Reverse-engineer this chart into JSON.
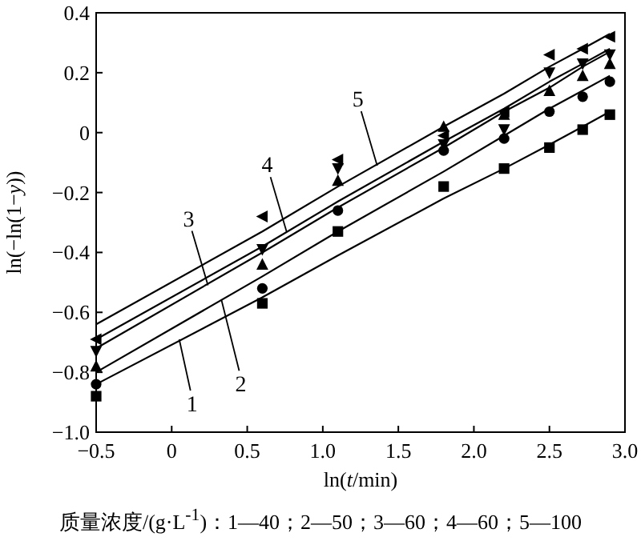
{
  "chart_data": {
    "type": "scatter",
    "xlabel": "ln(*t*/min)",
    "ylabel": "ln(−ln(1−*y*))",
    "xlim": [
      -0.5,
      3.0
    ],
    "xticks": [
      {
        "value": -0.5,
        "label": "−0.5"
      },
      0,
      0.5,
      {
        "value": 1.0,
        "label": "1.0"
      },
      1.5,
      {
        "value": 2.0,
        "label": "2.0"
      },
      2.5,
      {
        "value": 3.0,
        "label": "3.0"
      }
    ],
    "ylim": [
      -1.0,
      0.4
    ],
    "yticks": [
      {
        "value": -1.0,
        "label": "−1.0"
      },
      {
        "value": -0.8,
        "label": "−0.8"
      },
      {
        "value": -0.6,
        "label": "−0.6"
      },
      {
        "value": -0.4,
        "label": "−0.4"
      },
      {
        "value": -0.2,
        "label": "−0.2"
      },
      0,
      0.2,
      0.4
    ],
    "x": [
      -0.5,
      0.6,
      1.1,
      1.8,
      2.2,
      2.5,
      2.72,
      2.9
    ],
    "series": [
      {
        "color": "#000000",
        "marker": "square",
        "values": [
          -0.88,
          -0.57,
          -0.33,
          -0.18,
          -0.12,
          -0.05,
          0.01,
          0.06
        ]
      },
      {
        "color": "#000000",
        "marker": "circle",
        "values": [
          -0.84,
          -0.52,
          -0.26,
          -0.06,
          -0.02,
          0.07,
          0.12,
          0.17
        ]
      },
      {
        "color": "#000000",
        "marker": "triangle",
        "values": [
          -0.78,
          -0.44,
          -0.16,
          0.02,
          0.06,
          0.14,
          0.19,
          0.23
        ]
      },
      {
        "color": "#000000",
        "marker": "triangle-down",
        "values": [
          -0.73,
          -0.39,
          -0.12,
          -0.04,
          0.01,
          0.2,
          0.23,
          0.26
        ]
      },
      {
        "color": "#000000",
        "marker": "triangle-left",
        "values": [
          -0.69,
          -0.28,
          -0.09,
          -0.01,
          0.07,
          0.26,
          0.28,
          0.32
        ]
      },
      {
        "type": "line",
        "color": "#000000",
        "values": [
          -0.84,
          -0.55,
          -0.41,
          -0.22,
          -0.12,
          -0.04,
          0.02,
          0.07
        ]
      },
      {
        "type": "line",
        "color": "#000000",
        "values": [
          -0.8,
          -0.48,
          -0.33,
          -0.13,
          -0.01,
          0.08,
          0.14,
          0.19
        ]
      },
      {
        "type": "line",
        "color": "#000000",
        "values": [
          -0.72,
          -0.4,
          -0.25,
          -0.05,
          0.07,
          0.15,
          0.22,
          0.27
        ]
      },
      {
        "type": "line",
        "color": "#000000",
        "values": [
          -0.69,
          -0.38,
          -0.23,
          -0.03,
          0.08,
          0.17,
          0.23,
          0.28
        ]
      },
      {
        "type": "line",
        "color": "#000000",
        "values": [
          -0.64,
          -0.33,
          -0.18,
          0.02,
          0.13,
          0.22,
          0.28,
          0.33
        ]
      }
    ],
    "annotations": [
      {
        "text": "1",
        "x": 0.05,
        "y": -0.69
      },
      {
        "text": "2",
        "x": 0.33,
        "y": -0.56
      },
      {
        "text": "3",
        "x": 0.24,
        "y": -0.51
      },
      {
        "text": "4",
        "x": 0.76,
        "y": -0.33
      },
      {
        "text": "5",
        "x": 1.36,
        "y": -0.11
      },
      "质量浓度/(g·L$^{-1}$)：1—40；2—50；3—60；4—60；5—100"
    ]
  }
}
